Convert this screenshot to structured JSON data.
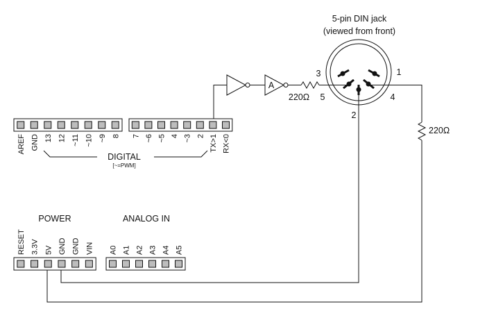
{
  "din": {
    "title": "5-pin DIN jack",
    "subtitle": "(viewed from front)",
    "pins": {
      "p1": "1",
      "p2": "2",
      "p3": "3",
      "p4": "4",
      "p5": "5"
    }
  },
  "resistors": {
    "r1": "220Ω",
    "r2": "220Ω"
  },
  "gate_label": "A",
  "digital": {
    "header_label": "DIGITAL",
    "note": "[~=PWM]",
    "left_pins": [
      "AREF",
      "GND",
      "13",
      "12",
      "~11",
      "~10",
      "~9",
      "8"
    ],
    "right_pins": [
      "7",
      "~6",
      "~5",
      "4",
      "~3",
      "2",
      "TX>1",
      "RX<0"
    ]
  },
  "power": {
    "header_label": "POWER",
    "pins": [
      "RESET",
      "3.3V",
      "5V",
      "GND",
      "GND",
      "VIN"
    ]
  },
  "analog": {
    "header_label": "ANALOG IN",
    "pins": [
      "A0",
      "A1",
      "A2",
      "A3",
      "A4",
      "A5"
    ]
  }
}
